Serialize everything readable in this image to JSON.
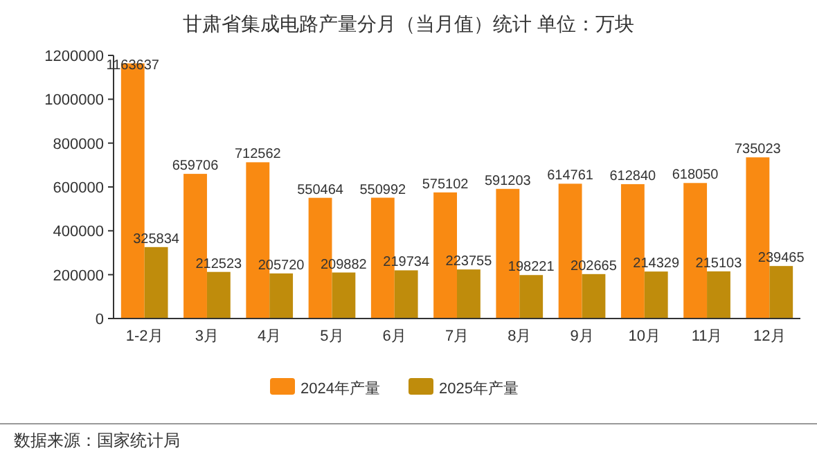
{
  "chart_data": {
    "type": "bar",
    "title": "甘肃省集成电路产量分月（当月值）统计  单位：万块",
    "categories": [
      "1-2月",
      "3月",
      "4月",
      "5月",
      "6月",
      "7月",
      "8月",
      "9月",
      "10月",
      "11月",
      "12月"
    ],
    "series": [
      {
        "name": "2024年产量",
        "color": "#f98a12",
        "values": [
          1163637,
          659706,
          712562,
          550464,
          550992,
          575102,
          591203,
          614761,
          612840,
          618050,
          735023
        ]
      },
      {
        "name": "2025年产量",
        "color": "#bf8c0c",
        "values": [
          325834,
          212523,
          205720,
          209882,
          219734,
          223755,
          198221,
          202665,
          214329,
          215103,
          239465
        ]
      }
    ],
    "ylim": [
      0,
      1200000
    ],
    "yticks": [
      0,
      200000,
      400000,
      600000,
      800000,
      1000000,
      1200000
    ],
    "data_labels": true,
    "legend": "bottom",
    "grid": false,
    "annotations": [
      "数据来源：国家统计局"
    ]
  }
}
